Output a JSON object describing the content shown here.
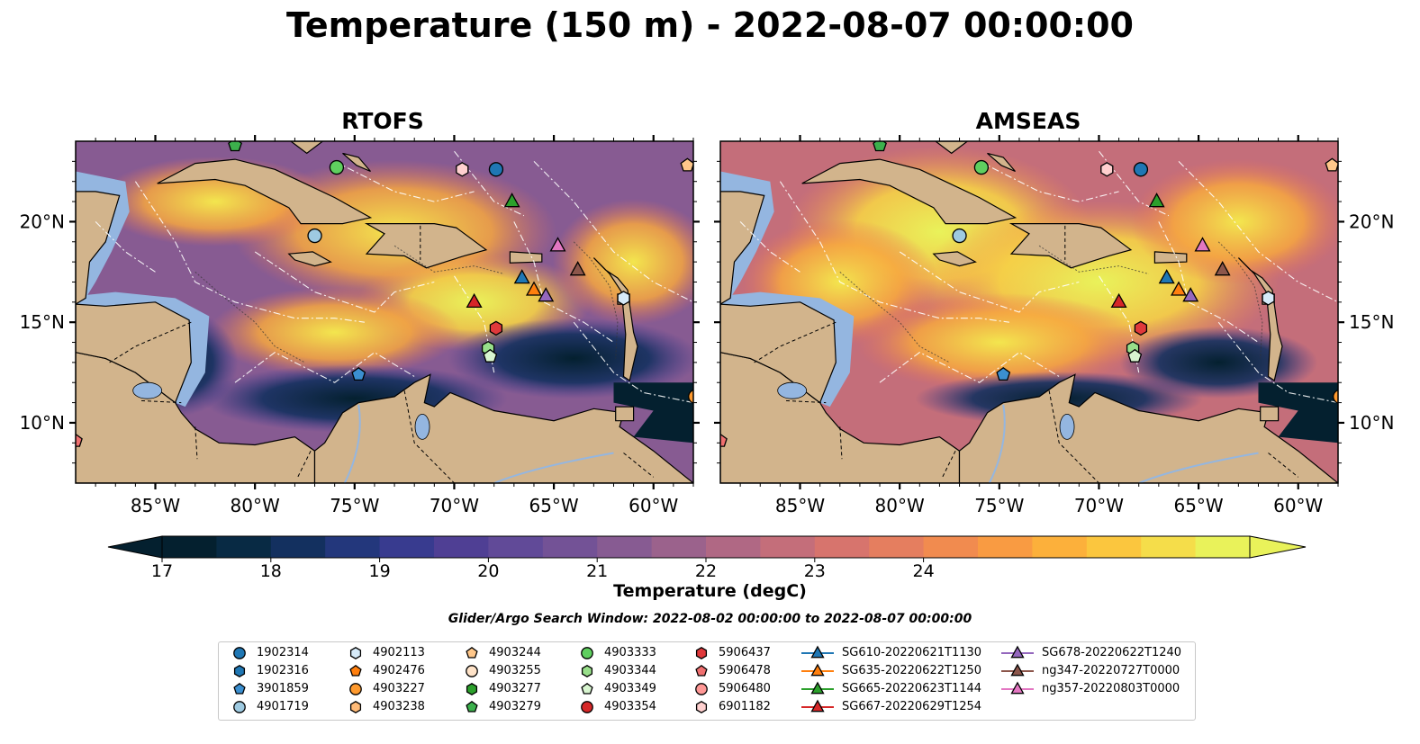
{
  "title": "Temperature (150 m) - 2022-08-07 00:00:00",
  "panels": [
    {
      "title": "RTOFS"
    },
    {
      "title": "AMSEAS"
    }
  ],
  "axes": {
    "lon_ticks": [
      "85°W",
      "80°W",
      "75°W",
      "70°W",
      "65°W",
      "60°W"
    ],
    "lat_ticks": [
      "20°N",
      "15°N",
      "10°N"
    ]
  },
  "colorbar": {
    "label": "Temperature (degC)",
    "ticks": [
      "17",
      "18",
      "19",
      "20",
      "21",
      "22",
      "23",
      "24"
    ],
    "colormap": [
      "#04202f",
      "#082a44",
      "#13305f",
      "#23377c",
      "#383b8f",
      "#4f3f94",
      "#614a98",
      "#735296",
      "#875b92",
      "#9b628c",
      "#b06884",
      "#c46e7a",
      "#d7746d",
      "#e57e5f",
      "#f18b4f",
      "#f99b42",
      "#fcb03b",
      "#fbc63e",
      "#f5dd4a",
      "#e9f25a"
    ]
  },
  "search_window": "Glider/Argo Search Window: 2022-08-02 00:00:00 to 2022-08-07 00:00:00",
  "legend": [
    {
      "label": "1902314",
      "color": "#1f77b4",
      "marker": "circle"
    },
    {
      "label": "1902316",
      "color": "#1f77b4",
      "marker": "hexagon"
    },
    {
      "label": "3901859",
      "color": "#3b8fd0",
      "marker": "pentagon"
    },
    {
      "label": "4901719",
      "color": "#9ecae1",
      "marker": "circle"
    },
    {
      "label": "4902113",
      "color": "#d6eaf8",
      "marker": "hexagon"
    },
    {
      "label": "4902476",
      "color": "#ff7f0e",
      "marker": "pentagon"
    },
    {
      "label": "4903227",
      "color": "#ff9a2e",
      "marker": "circle"
    },
    {
      "label": "4903238",
      "color": "#ffbb78",
      "marker": "hexagon"
    },
    {
      "label": "4903244",
      "color": "#ffc78a",
      "marker": "pentagon"
    },
    {
      "label": "4903255",
      "color": "#ffe3c8",
      "marker": "circle"
    },
    {
      "label": "4903277",
      "color": "#2ca02c",
      "marker": "hexagon"
    },
    {
      "label": "4903279",
      "color": "#3cb04c",
      "marker": "pentagon"
    },
    {
      "label": "4903333",
      "color": "#5fcf5f",
      "marker": "circle"
    },
    {
      "label": "4903344",
      "color": "#98df8a",
      "marker": "hexagon"
    },
    {
      "label": "4903349",
      "color": "#d8f5d0",
      "marker": "pentagon"
    },
    {
      "label": "4903354",
      "color": "#d62728",
      "marker": "circle"
    },
    {
      "label": "5906437",
      "color": "#e0393b",
      "marker": "hexagon"
    },
    {
      "label": "5906478",
      "color": "#f07070",
      "marker": "pentagon"
    },
    {
      "label": "5906480",
      "color": "#ff9896",
      "marker": "circle"
    },
    {
      "label": "6901182",
      "color": "#ffd0cf",
      "marker": "hexagon"
    },
    {
      "label": "SG610-20220621T1130",
      "color": "#1f77b4",
      "marker": "triangle"
    },
    {
      "label": "SG635-20220622T1250",
      "color": "#ff7f0e",
      "marker": "triangle"
    },
    {
      "label": "SG665-20220623T1144",
      "color": "#2ca02c",
      "marker": "triangle"
    },
    {
      "label": "SG667-20220629T1254",
      "color": "#d62728",
      "marker": "triangle"
    },
    {
      "label": "SG678-20220622T1240",
      "color": "#9467bd",
      "marker": "triangle"
    },
    {
      "label": "ng347-20220727T0000",
      "color": "#8c564b",
      "marker": "triangle"
    },
    {
      "label": "ng357-20220803T0000",
      "color": "#e377c2",
      "marker": "triangle"
    }
  ],
  "platforms": [
    {
      "id": "1902314",
      "lon": -67.9,
      "lat": 22.6
    },
    {
      "id": "4901719",
      "lon": -77.0,
      "lat": 19.3
    },
    {
      "id": "4903333",
      "lon": -75.9,
      "lat": 22.7
    },
    {
      "id": "4903279",
      "lon": -81.0,
      "lat": 23.8
    },
    {
      "id": "6901182",
      "lon": -69.6,
      "lat": 22.6
    },
    {
      "id": "4903244",
      "lon": -58.3,
      "lat": 22.8
    },
    {
      "id": "SG665-20220623T1144",
      "lon": -67.1,
      "lat": 21.0
    },
    {
      "id": "ng357-20220803T0000",
      "lon": -64.8,
      "lat": 18.8
    },
    {
      "id": "ng347-20220727T0000",
      "lon": -63.8,
      "lat": 17.6
    },
    {
      "id": "SG610-20220621T1130",
      "lon": -66.6,
      "lat": 17.2
    },
    {
      "id": "SG635-20220622T1250",
      "lon": -66.0,
      "lat": 16.6
    },
    {
      "id": "SG678-20220622T1240",
      "lon": -65.4,
      "lat": 16.3
    },
    {
      "id": "SG667-20220629T1254",
      "lon": -69.0,
      "lat": 16.0
    },
    {
      "id": "5906437",
      "lon": -67.9,
      "lat": 14.7
    },
    {
      "id": "4903344",
      "lon": -68.3,
      "lat": 13.7
    },
    {
      "id": "4903349",
      "lon": -68.2,
      "lat": 13.3
    },
    {
      "id": "3901859",
      "lon": -74.8,
      "lat": 12.4
    },
    {
      "id": "5906478",
      "lon": -89.0,
      "lat": 9.1
    },
    {
      "id": "4903227",
      "lon": -57.9,
      "lat": 11.3
    },
    {
      "id": "4902113",
      "lon": -61.5,
      "lat": 16.2
    }
  ]
}
